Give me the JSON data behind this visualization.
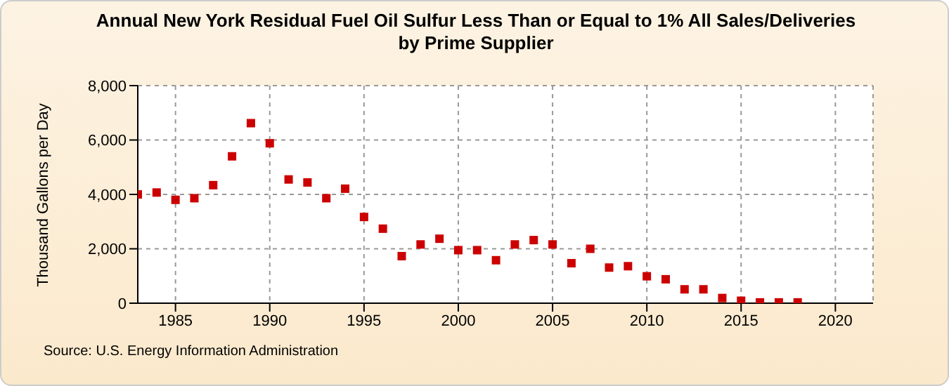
{
  "chart_data": {
    "type": "scatter",
    "title": "Annual New York Residual Fuel Oil Sulfur Less Than or Equal to 1% All Sales/Deliveries by Prime Supplier",
    "ylabel": "Thousand Gallons per Day",
    "annotations": [
      "Source: U.S. Energy Information Administration"
    ],
    "x": [
      1983,
      1984,
      1985,
      1986,
      1987,
      1988,
      1989,
      1990,
      1991,
      1992,
      1993,
      1994,
      1995,
      1996,
      1997,
      1998,
      1999,
      2000,
      2001,
      2002,
      2003,
      2004,
      2005,
      2006,
      2007,
      2008,
      2009,
      2010,
      2011,
      2012,
      2013,
      2014,
      2015,
      2016,
      2017,
      2018
    ],
    "series": [
      {
        "color": "#cc0000",
        "values": [
          4000,
          4070,
          3800,
          3860,
          4340,
          5400,
          6620,
          5880,
          4550,
          4440,
          3860,
          4210,
          3170,
          2740,
          1730,
          2160,
          2370,
          1950,
          1950,
          1580,
          2160,
          2320,
          2160,
          1470,
          2000,
          1310,
          1360,
          990,
          880,
          510,
          510,
          190,
          90,
          30,
          30,
          30
        ]
      }
    ],
    "xlim": [
      1983,
      2022
    ],
    "xticks": [
      1985,
      1990,
      1995,
      2000,
      2005,
      2010,
      2015,
      2020
    ],
    "ylim": [
      0,
      8000
    ],
    "yticks": [
      0,
      {
        "value": 2000,
        "label": "2,000"
      },
      {
        "value": 4000,
        "label": "4,000"
      },
      {
        "value": 6000,
        "label": "6,000"
      },
      {
        "value": 8000,
        "label": "8,000"
      }
    ],
    "grid": true,
    "marker": "square",
    "legend": false
  }
}
